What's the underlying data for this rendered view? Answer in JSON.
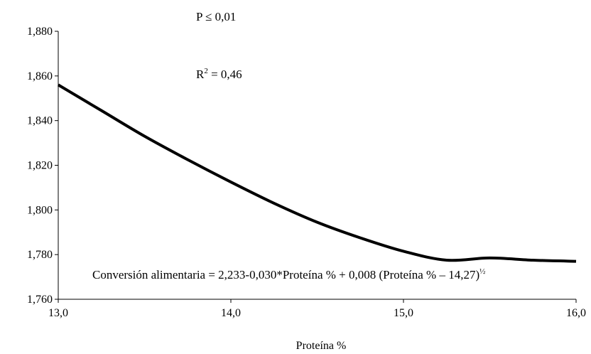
{
  "chart_data": {
    "type": "line",
    "title": "",
    "xlabel": "Proteína %",
    "ylabel": "",
    "xlim": [
      13.0,
      16.0
    ],
    "ylim": [
      1.76,
      1.88
    ],
    "x_ticks": [
      13.0,
      14.0,
      15.0,
      16.0
    ],
    "x_tick_labels": [
      "13,0",
      "14,0",
      "15,0",
      "16,0"
    ],
    "y_ticks": [
      1.76,
      1.78,
      1.8,
      1.82,
      1.84,
      1.86,
      1.88
    ],
    "y_tick_labels": [
      "1,760",
      "1,780",
      "1,800",
      "1,820",
      "1,840",
      "1,860",
      "1,880"
    ],
    "grid": false,
    "series": [
      {
        "x": [
          13.0,
          13.25,
          13.5,
          13.75,
          14.0,
          14.25,
          14.5,
          14.75,
          15.0,
          15.25,
          15.5,
          15.75,
          16.0
        ],
        "y": [
          1.856,
          1.8445,
          1.833,
          1.8225,
          1.8125,
          1.803,
          1.7945,
          1.7875,
          1.7815,
          1.7775,
          1.7785,
          1.7775,
          1.777
        ],
        "color": "#000000"
      }
    ],
    "annotations": {
      "p_value": "P ≤ 0,01",
      "r2_prefix": "R",
      "r2_sup": "2",
      "r2_value": " = 0,46",
      "equation": "Conversión alimentaria = 2,233-0,030*Proteína % + 0,008 (Proteína % – 14,27)",
      "equation_sup": "½"
    }
  }
}
